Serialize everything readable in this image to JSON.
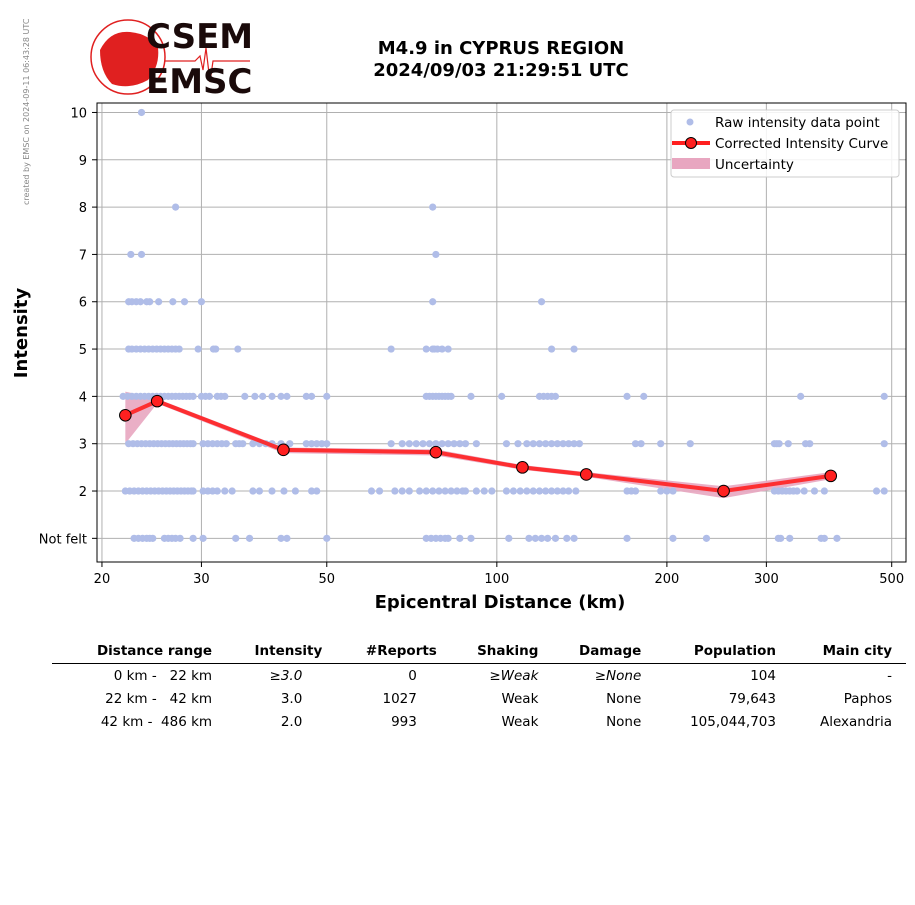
{
  "header": {
    "stamp": "created by EMSC on 2024-09-11 06:43:28 UTC",
    "logo_top": "CSEM",
    "logo_bottom": "EMSC",
    "title_line1": "M4.9 in CYPRUS REGION",
    "title_line2": "2024/09/03 21:29:51 UTC"
  },
  "colors": {
    "raw": "#b0bde8",
    "curve": "#ff2020",
    "marker": "#ff2020",
    "uncertainty": "#e8a6c0",
    "grid": "#b0b0b0"
  },
  "chart_data": {
    "type": "scatter",
    "xlabel": "Epicentral Distance (km)",
    "ylabel": "Intensity",
    "xscale": "log",
    "xlim": [
      19.6,
      530
    ],
    "ylim": [
      0.5,
      10.2
    ],
    "xticks": [
      20,
      30,
      50,
      100,
      200,
      300,
      500
    ],
    "xtick_labels": [
      "20",
      "30",
      "50",
      "100",
      "200",
      "300",
      "500"
    ],
    "yticks": [
      1,
      2,
      3,
      4,
      5,
      6,
      7,
      8,
      9,
      10
    ],
    "ytick_labels": [
      "Not felt",
      "2",
      "3",
      "4",
      "5",
      "6",
      "7",
      "8",
      "9",
      "10"
    ],
    "grid": true,
    "legend_position": "top-right",
    "legend": [
      "Raw intensity data point",
      "Corrected Intensity Curve",
      "Uncertainty"
    ],
    "raw_points": {
      "10": [
        23.5
      ],
      "8": [
        27,
        77
      ],
      "7": [
        22.5,
        23.5,
        78
      ],
      "6": [
        22.3,
        22.6,
        23,
        23.4,
        24,
        24.3,
        25.2,
        26.7,
        28,
        30,
        77,
        120
      ],
      "5": [
        22.3,
        22.6,
        23,
        23.4,
        23.8,
        24.2,
        24.6,
        25,
        25.4,
        25.8,
        26.2,
        26.6,
        27,
        27.4,
        29.6,
        31.5,
        31.8,
        34.8,
        65,
        75,
        77,
        77.5,
        78.5,
        80,
        82,
        125,
        137
      ],
      "4": [
        21.8,
        22.2,
        22.6,
        23,
        23.4,
        23.8,
        24.2,
        24.6,
        25,
        25.4,
        25.8,
        26.2,
        26.6,
        27,
        27.4,
        27.8,
        28.2,
        28.6,
        29,
        30,
        30.5,
        31,
        32,
        32.5,
        33,
        35.8,
        37.3,
        38.5,
        40,
        41.5,
        42.5,
        46,
        47,
        50,
        75,
        76,
        77,
        78,
        79,
        80,
        81,
        82,
        83,
        90,
        102,
        119,
        121,
        123,
        125,
        127,
        170,
        182,
        345,
        485
      ],
      "3": [
        22.3,
        22.7,
        23.1,
        23.5,
        23.9,
        24.3,
        24.7,
        25.1,
        25.5,
        25.9,
        26.3,
        26.7,
        27.1,
        27.5,
        27.9,
        28.3,
        28.7,
        29,
        30.2,
        30.8,
        31.4,
        32,
        32.6,
        33.2,
        34.5,
        35,
        35.5,
        37,
        38,
        39,
        40,
        41.5,
        43,
        46,
        47,
        48,
        49,
        50,
        65,
        68,
        70,
        72,
        74,
        76,
        78,
        80,
        82,
        84,
        86,
        88,
        92,
        104,
        109,
        113,
        116,
        119,
        122,
        125,
        128,
        131,
        134,
        137,
        140,
        176,
        180,
        195,
        220,
        310,
        313,
        316,
        328,
        352,
        358,
        485
      ],
      "2": [
        22,
        22.4,
        22.8,
        23.2,
        23.6,
        24,
        24.4,
        24.8,
        25.2,
        25.6,
        26,
        26.4,
        26.8,
        27.2,
        27.6,
        28,
        28.4,
        28.8,
        29,
        30.2,
        30.8,
        31.4,
        32,
        33,
        34,
        37,
        38,
        40,
        42,
        44,
        47,
        48,
        60,
        62,
        66,
        68,
        70,
        73,
        75,
        77,
        79,
        81,
        83,
        85,
        87,
        88,
        92,
        95,
        98,
        104,
        107,
        110,
        113,
        116,
        119,
        122,
        125,
        128,
        131,
        134,
        138,
        170,
        173,
        176,
        195,
        200,
        205,
        310,
        315,
        320,
        325,
        330,
        335,
        340,
        350,
        365,
        380,
        470,
        485
      ],
      "1": [
        22.8,
        23.2,
        23.6,
        24,
        24.3,
        24.6,
        25.8,
        26.2,
        26.6,
        27,
        27.5,
        29,
        30.2,
        34.5,
        36.5,
        41.5,
        42.5,
        50,
        75,
        76.5,
        78,
        79.5,
        81,
        82,
        86,
        90,
        105,
        114,
        117,
        120,
        123,
        127,
        133,
        137,
        170,
        205,
        235,
        315,
        318,
        330,
        375,
        380,
        400
      ]
    },
    "curve": {
      "x": [
        22,
        25.05,
        41.9,
        78,
        111,
        144,
        252,
        390
      ],
      "y": [
        3.6,
        3.9,
        2.87,
        2.82,
        2.5,
        2.35,
        2.0,
        2.32
      ],
      "lower": [
        3.0,
        3.85,
        2.8,
        2.75,
        2.45,
        2.3,
        1.85,
        2.25
      ],
      "upper": [
        4.1,
        3.95,
        2.92,
        2.88,
        2.55,
        2.4,
        2.1,
        2.4
      ]
    }
  },
  "table": {
    "headers": [
      "Distance range",
      "Intensity",
      "#Reports",
      "Shaking",
      "Damage",
      "Population",
      "Main city"
    ],
    "rows": [
      [
        "0 km -   22 km",
        "≥3.0",
        "0",
        "≥Weak",
        "≥None",
        "104",
        "-"
      ],
      [
        "22 km -   42 km",
        "3.0",
        "1027",
        "Weak",
        "None",
        "79,643",
        "Paphos"
      ],
      [
        "42 km -  486 km",
        "2.0",
        "993",
        "Weak",
        "None",
        "105,044,703",
        "Alexandria"
      ]
    ]
  }
}
